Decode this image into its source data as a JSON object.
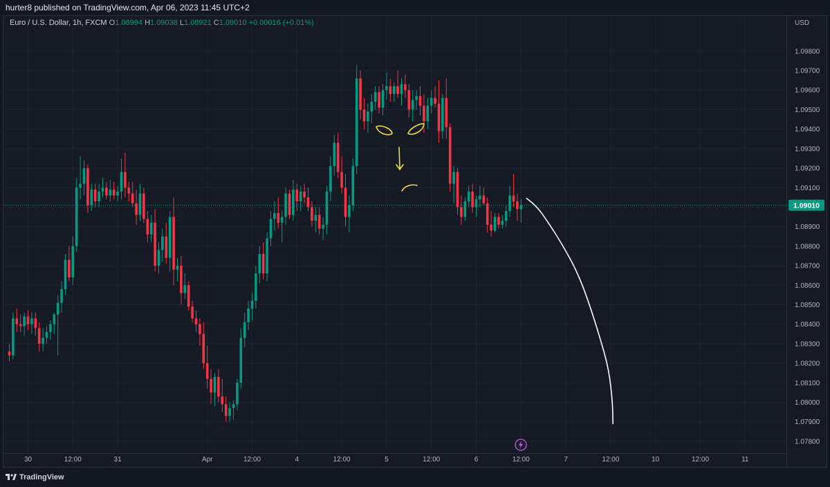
{
  "header": {
    "published": "hurter8 published on TradingView.com, Apr 06, 2023 11:45 UTC+2"
  },
  "legend": {
    "symbol": "Euro / U.S. Dollar, 1h, FXCM",
    "o_label": "O",
    "o_value": "1.08994",
    "h_label": "H",
    "h_value": "1.09038",
    "l_label": "L",
    "l_value": "1.08921",
    "c_label": "C",
    "c_value": "1.09010",
    "change": "+0.00016 (+0.01%)"
  },
  "footer": {
    "brand": "TradingView"
  },
  "colors": {
    "background": "#131722",
    "up": "#089981",
    "down": "#f23645",
    "grid": "#1f2330",
    "price_tag": "#089981",
    "drawing_white": "#ffffff",
    "drawing_yellow": "#f5dc3c",
    "event_icon": "#c060d8"
  },
  "icons": [
    "tradingview-logo-icon",
    "lightning-event-icon"
  ],
  "chart_data": {
    "type": "candlestick",
    "symbol": "EURUSD",
    "timeframe": "1h",
    "currency_label": "USD",
    "last_price_label": "1.09010",
    "last_price": 1.0901,
    "ylim": [
      1.0775,
      1.0992
    ],
    "y_ticks": [
      1.078,
      1.079,
      1.08,
      1.081,
      1.082,
      1.083,
      1.084,
      1.085,
      1.086,
      1.087,
      1.088,
      1.089,
      1.09,
      1.091,
      1.092,
      1.093,
      1.094,
      1.095,
      1.096,
      1.097,
      1.098
    ],
    "y_tick_labels": [
      "1.07800",
      "1.07900",
      "1.08000",
      "1.08100",
      "1.08200",
      "1.08300",
      "1.08400",
      "1.08500",
      "1.08600",
      "1.08700",
      "1.08800",
      "1.08900",
      "1.09000",
      "1.09100",
      "1.09200",
      "1.09300",
      "1.09400",
      "1.09500",
      "1.09600",
      "1.09700",
      "1.09800"
    ],
    "x_ticks": [
      {
        "bar": 5,
        "label": "30"
      },
      {
        "bar": 17,
        "label": "12:00"
      },
      {
        "bar": 29,
        "label": "31"
      },
      {
        "bar": 53,
        "label": "Apr"
      },
      {
        "bar": 65,
        "label": "12:00"
      },
      {
        "bar": 77,
        "label": "4"
      },
      {
        "bar": 89,
        "label": "12:00"
      },
      {
        "bar": 101,
        "label": "5"
      },
      {
        "bar": 113,
        "label": "12:00"
      },
      {
        "bar": 125,
        "label": "6"
      },
      {
        "bar": 137,
        "label": "12:00"
      },
      {
        "bar": 149,
        "label": "7"
      },
      {
        "bar": 161,
        "label": "12:00"
      },
      {
        "bar": 173,
        "label": "10"
      },
      {
        "bar": 185,
        "label": "12:00"
      },
      {
        "bar": 197,
        "label": "11"
      }
    ],
    "candles": [
      [
        1.0826,
        1.083,
        1.0821,
        1.0824
      ],
      [
        1.0824,
        1.0846,
        1.0822,
        1.0843
      ],
      [
        1.0843,
        1.0848,
        1.0836,
        1.084
      ],
      [
        1.084,
        1.0845,
        1.0836,
        1.0839
      ],
      [
        1.0839,
        1.0846,
        1.0834,
        1.0844
      ],
      [
        1.0844,
        1.0847,
        1.0837,
        1.084
      ],
      [
        1.084,
        1.0846,
        1.0835,
        1.0843
      ],
      [
        1.0843,
        1.0846,
        1.0834,
        1.0838
      ],
      [
        1.0838,
        1.0841,
        1.0826,
        1.083
      ],
      [
        1.083,
        1.0838,
        1.0826,
        1.0833
      ],
      [
        1.0833,
        1.0839,
        1.083,
        1.0836
      ],
      [
        1.0836,
        1.0842,
        1.0832,
        1.084
      ],
      [
        1.084,
        1.0846,
        1.0835,
        1.0845
      ],
      [
        1.0845,
        1.0855,
        1.0824,
        1.0851
      ],
      [
        1.0851,
        1.0862,
        1.0846,
        1.0858
      ],
      [
        1.0858,
        1.0876,
        1.0855,
        1.0873
      ],
      [
        1.0873,
        1.088,
        1.0862,
        1.0864
      ],
      [
        1.0864,
        1.0885,
        1.086,
        1.088
      ],
      [
        1.088,
        1.0915,
        1.0877,
        1.091
      ],
      [
        1.091,
        1.0926,
        1.0904,
        1.0912
      ],
      [
        1.0912,
        1.0924,
        1.0906,
        1.092
      ],
      [
        1.092,
        1.0922,
        1.0897,
        1.0901
      ],
      [
        1.0901,
        1.0912,
        1.0898,
        1.0909
      ],
      [
        1.0909,
        1.0912,
        1.09,
        1.0903
      ],
      [
        1.0903,
        1.0912,
        1.09,
        1.0908
      ],
      [
        1.0908,
        1.0915,
        1.0905,
        1.091
      ],
      [
        1.091,
        1.0913,
        1.0904,
        1.0906
      ],
      [
        1.0906,
        1.0914,
        1.0903,
        1.0909
      ],
      [
        1.0909,
        1.0913,
        1.0904,
        1.0906
      ],
      [
        1.0906,
        1.0911,
        1.0903,
        1.0908
      ],
      [
        1.0908,
        1.0925,
        1.0904,
        1.0918
      ],
      [
        1.0918,
        1.0928,
        1.0905,
        1.091
      ],
      [
        1.091,
        1.0913,
        1.0903,
        1.0907
      ],
      [
        1.0907,
        1.0913,
        1.09,
        1.0902
      ],
      [
        1.0902,
        1.0909,
        1.0891,
        1.0896
      ],
      [
        1.0896,
        1.0912,
        1.0893,
        1.0907
      ],
      [
        1.0907,
        1.091,
        1.0892,
        1.0894
      ],
      [
        1.0894,
        1.0898,
        1.0882,
        1.0886
      ],
      [
        1.0886,
        1.0896,
        1.0882,
        1.0892
      ],
      [
        1.0892,
        1.0899,
        1.0867,
        1.087
      ],
      [
        1.087,
        1.0882,
        1.0866,
        1.0878
      ],
      [
        1.0878,
        1.0889,
        1.0872,
        1.0885
      ],
      [
        1.0885,
        1.0892,
        1.0871,
        1.0874
      ],
      [
        1.0874,
        1.0898,
        1.0867,
        1.0895
      ],
      [
        1.0895,
        1.0905,
        1.086,
        1.0868
      ],
      [
        1.0868,
        1.0874,
        1.0862,
        1.087
      ],
      [
        1.087,
        1.0875,
        1.085,
        1.0856
      ],
      [
        1.0856,
        1.0866,
        1.0853,
        1.086
      ],
      [
        1.086,
        1.0862,
        1.0847,
        1.0849
      ],
      [
        1.0849,
        1.0852,
        1.0841,
        1.0843
      ],
      [
        1.0843,
        1.0847,
        1.0836,
        1.084
      ],
      [
        1.084,
        1.0843,
        1.0829,
        1.0835
      ],
      [
        1.0835,
        1.0841,
        1.0817,
        1.082
      ],
      [
        1.082,
        1.0829,
        1.0807,
        1.0812
      ],
      [
        1.0812,
        1.0817,
        1.0799,
        1.0805
      ],
      [
        1.0805,
        1.0815,
        1.0798,
        1.0813
      ],
      [
        1.0813,
        1.0817,
        1.08,
        1.0803
      ],
      [
        1.0803,
        1.0812,
        1.0795,
        1.0799
      ],
      [
        1.0799,
        1.0803,
        1.079,
        1.0793
      ],
      [
        1.0793,
        1.08,
        1.079,
        1.0797
      ],
      [
        1.0797,
        1.0801,
        1.0791,
        1.0799
      ],
      [
        1.0799,
        1.0812,
        1.0796,
        1.081
      ],
      [
        1.081,
        1.0838,
        1.0807,
        1.0833
      ],
      [
        1.0833,
        1.0846,
        1.0828,
        1.0841
      ],
      [
        1.0841,
        1.0852,
        1.0837,
        1.0848
      ],
      [
        1.0848,
        1.0856,
        1.0842,
        1.0852
      ],
      [
        1.0852,
        1.087,
        1.0848,
        1.0866
      ],
      [
        1.0866,
        1.088,
        1.0861,
        1.0876
      ],
      [
        1.0876,
        1.0882,
        1.0863,
        1.0866
      ],
      [
        1.0866,
        1.0887,
        1.0862,
        1.0884
      ],
      [
        1.0884,
        1.0898,
        1.088,
        1.0894
      ],
      [
        1.0894,
        1.0903,
        1.0888,
        1.0897
      ],
      [
        1.0897,
        1.0905,
        1.0889,
        1.0892
      ],
      [
        1.0892,
        1.0898,
        1.0882,
        1.0895
      ],
      [
        1.0895,
        1.091,
        1.0891,
        1.0907
      ],
      [
        1.0907,
        1.0909,
        1.0894,
        1.0896
      ],
      [
        1.0896,
        1.0914,
        1.0893,
        1.0909
      ],
      [
        1.0909,
        1.0912,
        1.0898,
        1.0903
      ],
      [
        1.0903,
        1.0911,
        1.0898,
        1.0908
      ],
      [
        1.0908,
        1.0912,
        1.0902,
        1.0905
      ],
      [
        1.0905,
        1.091,
        1.0898,
        1.09
      ],
      [
        1.09,
        1.0903,
        1.089,
        1.0893
      ],
      [
        1.0893,
        1.09,
        1.0887,
        1.0896
      ],
      [
        1.0896,
        1.09,
        1.0886,
        1.0889
      ],
      [
        1.0889,
        1.0895,
        1.0883,
        1.0891
      ],
      [
        1.0891,
        1.0911,
        1.0886,
        1.0908
      ],
      [
        1.0908,
        1.0926,
        1.0903,
        1.0921
      ],
      [
        1.0921,
        1.0937,
        1.0916,
        1.0933
      ],
      [
        1.0933,
        1.0938,
        1.0915,
        1.0918
      ],
      [
        1.0918,
        1.0926,
        1.0907,
        1.091
      ],
      [
        1.091,
        1.0917,
        1.089,
        1.0895
      ],
      [
        1.0895,
        1.0906,
        1.0887,
        1.0901
      ],
      [
        1.0901,
        1.0925,
        1.0898,
        1.0921
      ],
      [
        1.0921,
        1.0973,
        1.0917,
        1.0966
      ],
      [
        1.0966,
        1.097,
        1.0945,
        1.095
      ],
      [
        1.095,
        1.0956,
        1.094,
        1.0944
      ],
      [
        1.0944,
        1.0953,
        1.0938,
        1.0949
      ],
      [
        1.0949,
        1.0958,
        1.0943,
        1.0954
      ],
      [
        1.0954,
        1.0962,
        1.095,
        1.0959
      ],
      [
        1.0959,
        1.0962,
        1.0948,
        1.0951
      ],
      [
        1.0951,
        1.0963,
        1.0947,
        1.096
      ],
      [
        1.096,
        1.0969,
        1.0955,
        1.0962
      ],
      [
        1.0962,
        1.0966,
        1.0954,
        1.0958
      ],
      [
        1.0958,
        1.0964,
        1.0954,
        1.0962
      ],
      [
        1.0962,
        1.097,
        1.0956,
        1.0958
      ],
      [
        1.0958,
        1.0966,
        1.0952,
        1.0963
      ],
      [
        1.0963,
        1.0968,
        1.0956,
        1.096
      ],
      [
        1.096,
        1.0963,
        1.0946,
        1.095
      ],
      [
        1.095,
        1.096,
        1.0944,
        1.0955
      ],
      [
        1.0955,
        1.096,
        1.095,
        1.0957
      ],
      [
        1.0957,
        1.0962,
        1.0947,
        1.0952
      ],
      [
        1.0952,
        1.0958,
        1.0938,
        1.0944
      ],
      [
        1.0944,
        1.0956,
        1.094,
        1.0952
      ],
      [
        1.0952,
        1.096,
        1.0948,
        1.0956
      ],
      [
        1.0956,
        1.0962,
        1.0951,
        1.0953
      ],
      [
        1.0953,
        1.0965,
        1.0933,
        1.0939
      ],
      [
        1.0939,
        1.0958,
        1.0935,
        1.0956
      ],
      [
        1.0956,
        1.0966,
        1.0935,
        1.0941
      ],
      [
        1.0941,
        1.0943,
        1.0908,
        1.0912
      ],
      [
        1.0912,
        1.0921,
        1.0902,
        1.0918
      ],
      [
        1.0918,
        1.092,
        1.0896,
        1.09
      ],
      [
        1.09,
        1.0906,
        1.0891,
        1.0895
      ],
      [
        1.0895,
        1.0905,
        1.0893,
        1.0903
      ],
      [
        1.0903,
        1.0911,
        1.09,
        1.0908
      ],
      [
        1.0908,
        1.0912,
        1.0897,
        1.09
      ],
      [
        1.09,
        1.0906,
        1.0895,
        1.0904
      ],
      [
        1.0904,
        1.0911,
        1.09,
        1.0906
      ],
      [
        1.0906,
        1.091,
        1.0901,
        1.0902
      ],
      [
        1.0902,
        1.0905,
        1.0887,
        1.0891
      ],
      [
        1.0891,
        1.0898,
        1.0885,
        1.0888
      ],
      [
        1.0888,
        1.0897,
        1.0887,
        1.0895
      ],
      [
        1.0895,
        1.0897,
        1.0889,
        1.0891
      ],
      [
        1.0891,
        1.0896,
        1.0889,
        1.0893
      ],
      [
        1.0893,
        1.0901,
        1.089,
        1.0898
      ],
      [
        1.0898,
        1.0911,
        1.0895,
        1.0906
      ],
      [
        1.0906,
        1.0917,
        1.09,
        1.0903
      ],
      [
        1.0903,
        1.0907,
        1.0893,
        1.0899
      ],
      [
        1.0899,
        1.0904,
        1.0892,
        1.0901
      ]
    ],
    "drawings": {
      "projection": {
        "color": "white",
        "points": [
          [
            138.5,
            1.09045
          ],
          [
            141,
            1.0901
          ],
          [
            144,
            1.0893
          ],
          [
            148,
            1.0881
          ],
          [
            152,
            1.0867
          ],
          [
            155,
            1.0852
          ],
          [
            158,
            1.0834
          ],
          [
            160.5,
            1.0817
          ],
          [
            161.5,
            1.08
          ],
          [
            161.6,
            1.0789
          ]
        ]
      },
      "face": {
        "color": "yellow"
      }
    }
  }
}
